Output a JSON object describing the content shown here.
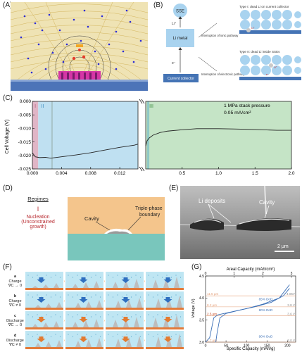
{
  "panels": {
    "A": {
      "label": "(A)"
    },
    "B": {
      "label": "(B)",
      "sse": "SSE",
      "li_ion": "Li⁺",
      "li_metal": "Li metal",
      "electron": "e⁻",
      "current_collector": "Current collector",
      "type1": "Type I: dead Li on current collector",
      "type2": "Type II: dead Li inside SSEs",
      "ionic": "Interruption of ionic pathway",
      "electronic": "Interruption of electronic pathway",
      "li_small": "Li⁺",
      "e_small": "e⁻"
    },
    "C": {
      "label": "(C)",
      "ylabel": "Cell Voltage (V)",
      "annotation1": "1 MPa stack pressure",
      "annotation2": "0.05 mA/cm²",
      "region1": "I",
      "region2": "II",
      "region3": "III"
    },
    "D": {
      "label": "(D)",
      "regimes": "Regimes",
      "regime_num": "I",
      "nucleation1": "Nucleation",
      "nucleation2": "(Unconstrained",
      "nucleation3": "growth)",
      "cavity": "Cavity",
      "triple1": "Triple-phase",
      "triple2": "boundary"
    },
    "E": {
      "label": "(E)",
      "deposits": "Li deposits",
      "cavity": "Cavity",
      "scale": "2 μm"
    },
    "F": {
      "label": "(F)",
      "rows": [
        {
          "letter": "a",
          "mode": "Charge",
          "cond": "∇C → 0"
        },
        {
          "letter": "b",
          "mode": "Charge",
          "cond": "∇C ≠ 0"
        },
        {
          "letter": "c",
          "mode": "Discharge",
          "cond": "∇C → 0"
        },
        {
          "letter": "d",
          "mode": "Discharge",
          "cond": "∇C ≠ 0"
        }
      ]
    },
    "G": {
      "label": "(G)",
      "top_axis": "Areal Capacity (mAh/cm²)",
      "bottom_axis": "Specific Capacity (mAh/g)",
      "ylabel": "Voltage (V)"
    }
  },
  "chart_data": [
    {
      "type": "line",
      "panel": "C",
      "ylabel": "Cell Voltage (V)",
      "xlabel": "",
      "ylim": [
        -0.025,
        0.0
      ],
      "yticks": [
        "0.000",
        "-0.005",
        "-0.010",
        "-0.015",
        "-0.020",
        "-0.025"
      ],
      "xticks": [
        "0.000",
        "0.004",
        "0.008",
        "0.012",
        "0.5",
        "1.0",
        "1.5",
        "2.0"
      ],
      "segments": [
        {
          "xlim": [
            0.0,
            0.0145
          ],
          "x": [
            0.0,
            0.0004,
            0.001,
            0.0018,
            0.0025,
            0.004,
            0.006,
            0.008,
            0.01,
            0.012,
            0.014,
            0.0145
          ],
          "y": [
            -0.019,
            -0.0205,
            -0.0208,
            -0.0207,
            -0.021,
            -0.0205,
            -0.0198,
            -0.019,
            -0.018,
            -0.017,
            -0.0162,
            -0.0158
          ]
        },
        {
          "xlim": [
            0.0,
            2.0
          ],
          "x": [
            0.0,
            0.02,
            0.05,
            0.1,
            0.2,
            0.3,
            0.5,
            0.7,
            1.0,
            1.2,
            1.5,
            1.8,
            2.0
          ],
          "y": [
            -0.0165,
            -0.0145,
            -0.0135,
            -0.0125,
            -0.0115,
            -0.011,
            -0.0105,
            -0.0101,
            -0.0101,
            -0.0102,
            -0.0104,
            -0.0107,
            -0.0107
          ]
        }
      ],
      "annotations": [
        "1 MPa stack pressure",
        "0.05 mA/cm²"
      ],
      "regions": [
        {
          "name": "I",
          "color": "#e0b5c6"
        },
        {
          "name": "II",
          "color": "#bfe0f1"
        },
        {
          "name": "III",
          "color": "#c5e4c6"
        }
      ],
      "grid": false
    },
    {
      "type": "line",
      "panel": "G",
      "xlabel": "Specific Capacity (mAh/g)",
      "x2label": "Areal Capacity (mAh/cm²)",
      "ylabel": "Voltage (V)",
      "xlim": [
        0,
        220
      ],
      "ylim": [
        3.0,
        4.5
      ],
      "xticks": [
        0,
        50,
        100,
        150,
        200
      ],
      "x2ticks": [
        0,
        1,
        2,
        3
      ],
      "yticks": [
        3.0,
        3.5,
        4.0,
        4.5
      ],
      "thickness_labels": [
        "11.5 μm",
        "8.2 μm",
        "2.5 μm",
        "1.7 μm"
      ],
      "dod_labels": [
        "65% DoD",
        "80% DoD",
        "90% DoD"
      ],
      "voltage_labels": [
        "4.05V",
        "3.8 V",
        "3.6 V",
        "3.0 V"
      ],
      "series": [
        {
          "x": [
            0,
            10,
            20,
            30,
            60,
            100,
            140,
            180,
            205
          ],
          "y": [
            3.0,
            3.1,
            3.55,
            3.62,
            3.68,
            3.76,
            3.86,
            4.0,
            4.3
          ]
        },
        {
          "x": [
            205,
            190,
            160,
            120,
            80,
            50,
            35,
            28,
            25
          ],
          "y": [
            4.22,
            4.05,
            3.9,
            3.8,
            3.72,
            3.65,
            3.55,
            3.2,
            3.0
          ]
        }
      ],
      "colors": {
        "lines": "#3b6fb6",
        "guides": "#e4a07a"
      }
    }
  ]
}
